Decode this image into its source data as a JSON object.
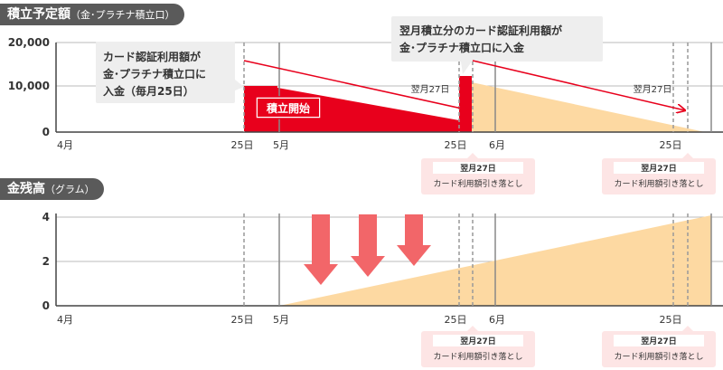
{
  "panels": {
    "top": {
      "title": "積立予定額",
      "subtitle": "（金･プラチナ積立口）",
      "y_ticks": [
        "20,000",
        "10,000",
        "0"
      ],
      "x_labels": {
        "apr": "4月",
        "d25a": "25日",
        "may": "5月",
        "d25b": "25日",
        "jun": "6月",
        "d25c": "25日"
      },
      "callout_left": [
        "カード認証利用額が",
        "金･プラチナ積立口に",
        "入金（毎月25日）"
      ],
      "callout_right": [
        "翌月積立分のカード認証利用額が",
        "金･プラチナ積立口に入金"
      ],
      "start_badge": "積立開始",
      "arrow_label_1": "翌月27日",
      "arrow_label_2": "翌月27日",
      "note1": [
        "翌月27日",
        "カード利用額引き落とし"
      ],
      "note2": [
        "翌月27日",
        "カード利用額引き落とし"
      ]
    },
    "bottom": {
      "title": "金残高",
      "subtitle": "（グラム）",
      "y_ticks": [
        "4",
        "2",
        "0"
      ],
      "x_labels": {
        "apr": "4月",
        "d25a": "25日",
        "may": "5月",
        "d25b": "25日",
        "jun": "6月",
        "d25c": "25日"
      },
      "note1": [
        "翌月27日",
        "カード利用額引き落とし"
      ],
      "note2": [
        "翌月27日",
        "カード利用額引き落とし"
      ]
    }
  },
  "colors": {
    "red": "#e8001c",
    "peach": "#fdd9a2",
    "arrow": "#f26669",
    "header": "#5a5a5a",
    "note_bg": "#fde5e5"
  }
}
